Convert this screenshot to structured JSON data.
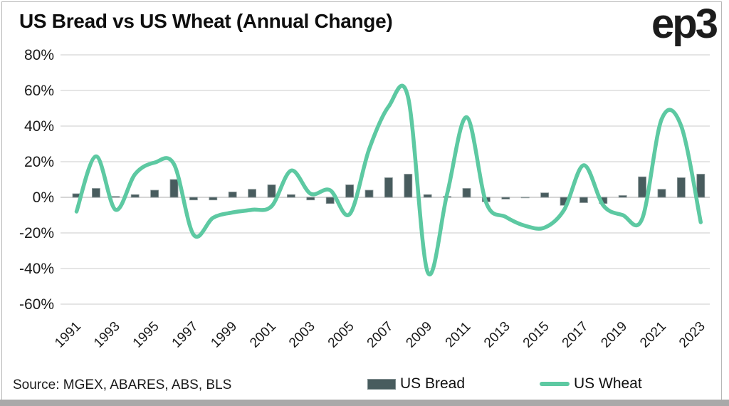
{
  "header": {
    "title": "US Bread vs US Wheat (Annual Change)",
    "logo": "ep3"
  },
  "footer": {
    "source": "Source: MGEX, ABARES, ABS, BLS"
  },
  "legend": {
    "items": [
      {
        "label": "US Bread",
        "type": "bar",
        "color": "#485c5e"
      },
      {
        "label": "US Wheat",
        "type": "line",
        "color": "#5dc9a2"
      }
    ]
  },
  "chart_data": {
    "type": "combo",
    "title": "US Bread vs US Wheat (Annual Change)",
    "x": [
      1991,
      1992,
      1993,
      1994,
      1995,
      1996,
      1997,
      1998,
      1999,
      2000,
      2001,
      2002,
      2003,
      2004,
      2005,
      2006,
      2007,
      2008,
      2009,
      2010,
      2011,
      2012,
      2013,
      2014,
      2015,
      2016,
      2017,
      2018,
      2019,
      2020,
      2021,
      2022,
      2023
    ],
    "series": [
      {
        "name": "US Bread",
        "type": "bar",
        "color": "#485c5e",
        "values": [
          2,
          5,
          0.5,
          1.5,
          4,
          10,
          -1.5,
          -1.5,
          3,
          4.5,
          7,
          1.5,
          -1.5,
          -3.5,
          7,
          4,
          11,
          13,
          1.5,
          0.5,
          5,
          -2.5,
          -1,
          -0.3,
          2.5,
          -4.5,
          -3,
          -3.5,
          1,
          11.5,
          4.5,
          11,
          13
        ]
      },
      {
        "name": "US Wheat",
        "type": "line",
        "color": "#5dc9a2",
        "values": [
          -8,
          23,
          -7,
          13,
          19.5,
          18.5,
          -21,
          -11.5,
          -8.5,
          -7,
          -5,
          15,
          2,
          4,
          -9.5,
          27,
          51,
          56,
          -42,
          2,
          45,
          -3,
          -11,
          -16,
          -17,
          -7,
          18,
          -4.5,
          -10,
          -12,
          44,
          40,
          -14
        ]
      }
    ],
    "ylim": [
      -60,
      80
    ],
    "yticks": [
      "80%",
      "60%",
      "40%",
      "20%",
      "0%",
      "-20%",
      "-40%",
      "-60%"
    ],
    "xticks": [
      "1991",
      "1993",
      "1995",
      "1997",
      "1999",
      "2001",
      "2003",
      "2005",
      "2007",
      "2009",
      "2011",
      "2013",
      "2015",
      "2017",
      "2019",
      "2021",
      "2023"
    ],
    "grid": true,
    "legend_position": "bottom",
    "grid_color": "#e5e5e5",
    "zero_line_color": "#d6d6d6",
    "axis_text_color": "#1a1a1a"
  }
}
